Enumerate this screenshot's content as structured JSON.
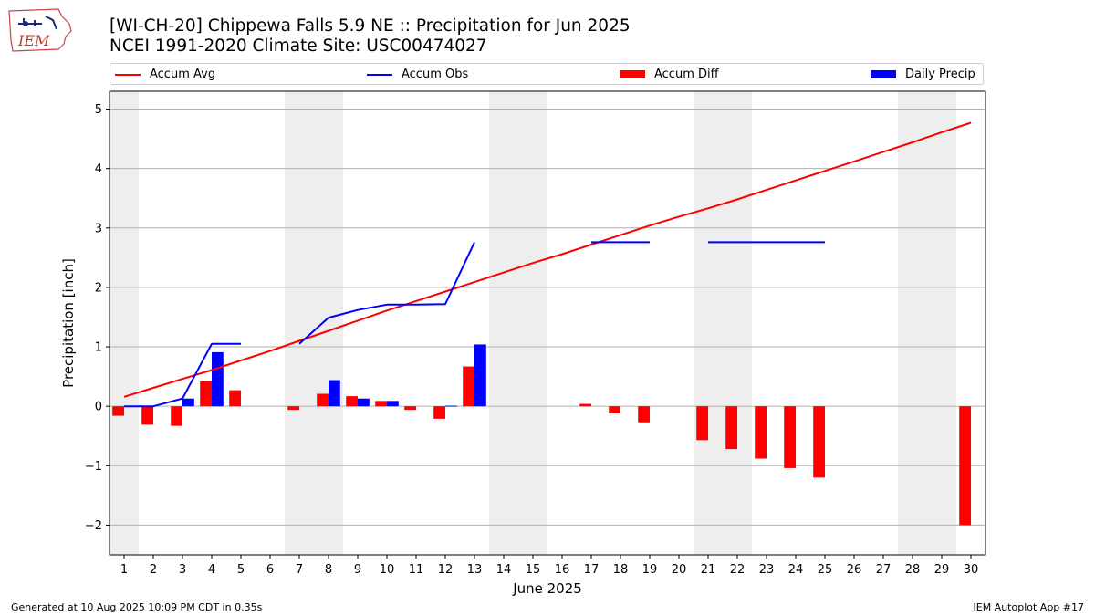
{
  "header": {
    "title": "[WI-CH-20] Chippewa Falls 5.9 NE :: Precipitation for Jun 2025",
    "subtitle": "NCEI 1991-2020 Climate Site: USC00474027",
    "logo_text": "IEM"
  },
  "footer": {
    "generated": "Generated at 10 Aug 2025 10:09 PM CDT in 0.35s",
    "app": "IEM Autoplot App #17"
  },
  "colors": {
    "avg": "#ff0000",
    "obs": "#0000ff",
    "diff": "#ff0000",
    "daily": "#0000ff",
    "weekend_shade": "#eeeeee",
    "grid": "#b0b0b0"
  },
  "chart_data": {
    "type": "bar",
    "xlabel": "June 2025",
    "ylabel": "Precipitation [inch]",
    "ylim": [
      -2.5,
      5.3
    ],
    "xlim": [
      0.5,
      30.5
    ],
    "yticks": [
      5,
      4,
      3,
      2,
      1,
      0,
      -1,
      -2
    ],
    "ytick_labels": [
      "5",
      "4",
      "3",
      "2",
      "1",
      "0",
      "−1",
      "−2"
    ],
    "days": [
      1,
      2,
      3,
      4,
      5,
      6,
      7,
      8,
      9,
      10,
      11,
      12,
      13,
      14,
      15,
      16,
      17,
      18,
      19,
      20,
      21,
      22,
      23,
      24,
      25,
      26,
      27,
      28,
      29,
      30
    ],
    "grid": true,
    "legend_position": "top",
    "weekend_days": [
      1,
      7,
      8,
      14,
      15,
      21,
      22,
      28,
      29
    ],
    "series": [
      {
        "name": "Accum Avg",
        "kind": "line",
        "values": [
          0.16,
          0.31,
          0.46,
          0.61,
          0.77,
          0.93,
          1.1,
          1.27,
          1.44,
          1.61,
          1.77,
          1.93,
          2.09,
          2.25,
          2.41,
          2.56,
          2.72,
          2.88,
          3.04,
          3.19,
          3.33,
          3.48,
          3.64,
          3.8,
          3.96,
          4.12,
          4.28,
          4.44,
          4.61,
          4.77
        ]
      },
      {
        "name": "Accum Obs",
        "kind": "line",
        "values": [
          0.0,
          0.0,
          0.13,
          1.05,
          1.05,
          null,
          1.05,
          1.49,
          1.62,
          1.71,
          1.71,
          1.72,
          2.76,
          null,
          null,
          null,
          2.76,
          2.76,
          2.76,
          null,
          2.76,
          2.76,
          2.76,
          2.76,
          2.76,
          null,
          null,
          null,
          null,
          null
        ]
      },
      {
        "name": "Accum Diff",
        "kind": "bar",
        "values": [
          -0.16,
          -0.31,
          -0.33,
          0.42,
          0.27,
          null,
          -0.06,
          0.21,
          0.17,
          0.09,
          -0.06,
          -0.21,
          0.67,
          null,
          null,
          null,
          0.04,
          -0.12,
          -0.27,
          null,
          -0.57,
          -0.72,
          -0.88,
          -1.04,
          -1.2,
          null,
          null,
          null,
          null,
          -2.0
        ]
      },
      {
        "name": "Daily Precip",
        "kind": "bar",
        "values": [
          0.0,
          0.0,
          0.13,
          0.91,
          0.0,
          null,
          0.0,
          0.44,
          0.13,
          0.09,
          0.0,
          0.01,
          1.04,
          null,
          null,
          null,
          0.0,
          0.0,
          0.0,
          null,
          0.0,
          0.0,
          0.0,
          0.0,
          0.0,
          null,
          null,
          null,
          null,
          null
        ]
      }
    ]
  }
}
